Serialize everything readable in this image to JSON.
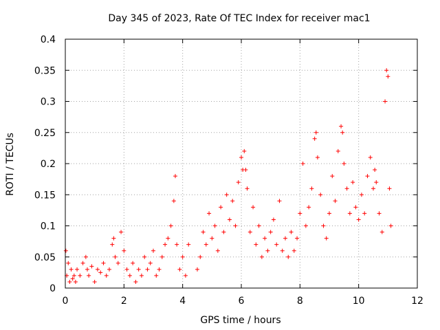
{
  "chart_data": {
    "type": "scatter",
    "title": "Day 345 of 2023, Rate Of TEC Index for receiver mac1",
    "xlabel": "GPS time / hours",
    "ylabel": "ROTI / TECUs",
    "xlim": [
      0,
      12
    ],
    "ylim": [
      0,
      0.4
    ],
    "xticks": [
      0,
      2,
      4,
      6,
      8,
      10,
      12
    ],
    "xtick_labels": [
      "0",
      "2",
      "4",
      "6",
      "8",
      "10",
      "12"
    ],
    "yticks": [
      0,
      0.05,
      0.1,
      0.15,
      0.2,
      0.25,
      0.3,
      0.35,
      0.4
    ],
    "ytick_labels": [
      "0",
      "0.05",
      "0.1",
      "0.15",
      "0.2",
      "0.25",
      "0.3",
      "0.35",
      "0.4"
    ],
    "grid": true,
    "marker": "plus",
    "color": "#ff0000",
    "series": [
      {
        "name": "ROTI mac1",
        "x": [
          0.02,
          0.05,
          0.1,
          0.15,
          0.2,
          0.25,
          0.3,
          0.35,
          0.4,
          0.5,
          0.6,
          0.7,
          0.75,
          0.8,
          0.9,
          1.0,
          1.1,
          1.2,
          1.3,
          1.4,
          1.5,
          1.6,
          1.65,
          1.7,
          1.8,
          1.9,
          2.0,
          2.1,
          2.2,
          2.3,
          2.4,
          2.5,
          2.6,
          2.7,
          2.8,
          2.9,
          3.0,
          3.1,
          3.2,
          3.3,
          3.4,
          3.5,
          3.6,
          3.7,
          3.75,
          3.8,
          3.9,
          4.0,
          4.1,
          4.2,
          4.5,
          4.6,
          4.7,
          4.8,
          4.9,
          5.0,
          5.1,
          5.2,
          5.3,
          5.4,
          5.5,
          5.6,
          5.7,
          5.8,
          5.9,
          6.0,
          6.05,
          6.1,
          6.15,
          6.2,
          6.3,
          6.4,
          6.5,
          6.6,
          6.7,
          6.8,
          6.9,
          7.0,
          7.1,
          7.2,
          7.3,
          7.4,
          7.5,
          7.6,
          7.7,
          7.8,
          7.9,
          8.0,
          8.1,
          8.2,
          8.3,
          8.4,
          8.5,
          8.55,
          8.6,
          8.7,
          8.8,
          8.9,
          9.0,
          9.1,
          9.2,
          9.3,
          9.4,
          9.45,
          9.5,
          9.6,
          9.7,
          9.8,
          9.9,
          10.0,
          10.1,
          10.2,
          10.3,
          10.4,
          10.5,
          10.55,
          10.6,
          10.7,
          10.8,
          10.9,
          10.95,
          11.0,
          11.05,
          11.1
        ],
        "y": [
          0.06,
          0.02,
          0.04,
          0.01,
          0.03,
          0.015,
          0.02,
          0.01,
          0.03,
          0.02,
          0.04,
          0.05,
          0.03,
          0.02,
          0.035,
          0.01,
          0.03,
          0.025,
          0.04,
          0.02,
          0.03,
          0.07,
          0.08,
          0.05,
          0.04,
          0.09,
          0.06,
          0.03,
          0.02,
          0.04,
          0.01,
          0.03,
          0.02,
          0.05,
          0.03,
          0.04,
          0.06,
          0.02,
          0.03,
          0.05,
          0.07,
          0.08,
          0.1,
          0.14,
          0.18,
          0.07,
          0.03,
          0.05,
          0.02,
          0.07,
          0.03,
          0.05,
          0.09,
          0.07,
          0.12,
          0.08,
          0.1,
          0.06,
          0.13,
          0.09,
          0.15,
          0.11,
          0.14,
          0.1,
          0.17,
          0.21,
          0.19,
          0.22,
          0.19,
          0.16,
          0.09,
          0.13,
          0.07,
          0.1,
          0.05,
          0.08,
          0.06,
          0.09,
          0.11,
          0.07,
          0.14,
          0.06,
          0.08,
          0.05,
          0.09,
          0.06,
          0.08,
          0.12,
          0.2,
          0.1,
          0.13,
          0.16,
          0.24,
          0.25,
          0.21,
          0.15,
          0.1,
          0.08,
          0.12,
          0.18,
          0.14,
          0.22,
          0.26,
          0.25,
          0.2,
          0.16,
          0.12,
          0.17,
          0.13,
          0.11,
          0.15,
          0.12,
          0.18,
          0.21,
          0.16,
          0.19,
          0.17,
          0.12,
          0.09,
          0.3,
          0.35,
          0.34,
          0.16,
          0.1
        ]
      }
    ]
  }
}
